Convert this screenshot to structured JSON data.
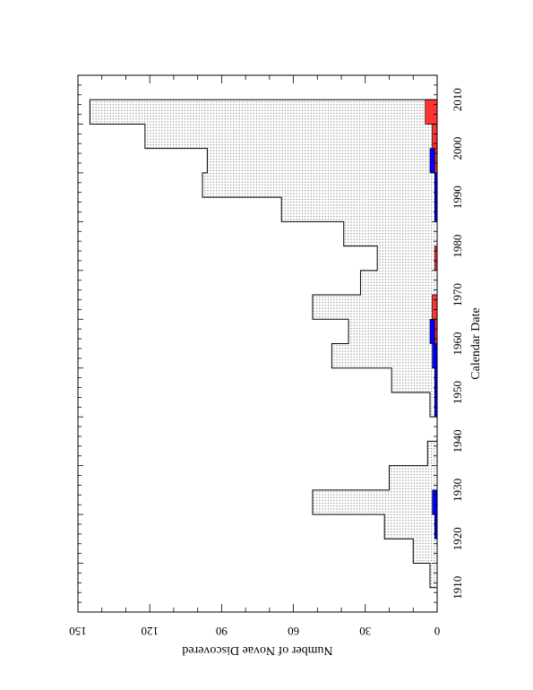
{
  "chart_data": {
    "type": "bar",
    "orientation": "rotated-90",
    "xlabel": "Calendar Date",
    "ylabel": "Number of Novae Discovered",
    "xlim": [
      1905,
      2015
    ],
    "ylim": [
      0,
      150
    ],
    "x_ticks": [
      1910,
      1920,
      1930,
      1940,
      1950,
      1960,
      1970,
      1980,
      1990,
      2000,
      2010
    ],
    "y_ticks": [
      0,
      30,
      60,
      90,
      120,
      150
    ],
    "bin_width": 5,
    "bin_starts": [
      1905,
      1910,
      1915,
      1920,
      1925,
      1930,
      1935,
      1940,
      1945,
      1950,
      1955,
      1960,
      1965,
      1970,
      1975,
      1980,
      1985,
      1990,
      1995,
      2000,
      2005,
      2010
    ],
    "series": [
      {
        "values": [
          0,
          3,
          10,
          22,
          52,
          20,
          4,
          0,
          3,
          19,
          44,
          37,
          52,
          32,
          25,
          39,
          65,
          98,
          96,
          122,
          145,
          0
        ],
        "color": "#e8e8e8",
        "style": "dotted-histogram"
      },
      {
        "values": [
          0,
          0,
          0,
          1,
          2,
          0,
          0,
          0,
          1,
          1,
          2,
          3,
          2,
          0,
          0,
          0,
          1,
          1,
          3,
          2,
          4,
          0
        ],
        "color": "#0000ff"
      },
      {
        "values": [
          0,
          0,
          0,
          0,
          0,
          0,
          0,
          0,
          0,
          0,
          0,
          1,
          2,
          0,
          1,
          0,
          0,
          0,
          1,
          2,
          5,
          0
        ],
        "color": "#ff3333"
      }
    ]
  }
}
